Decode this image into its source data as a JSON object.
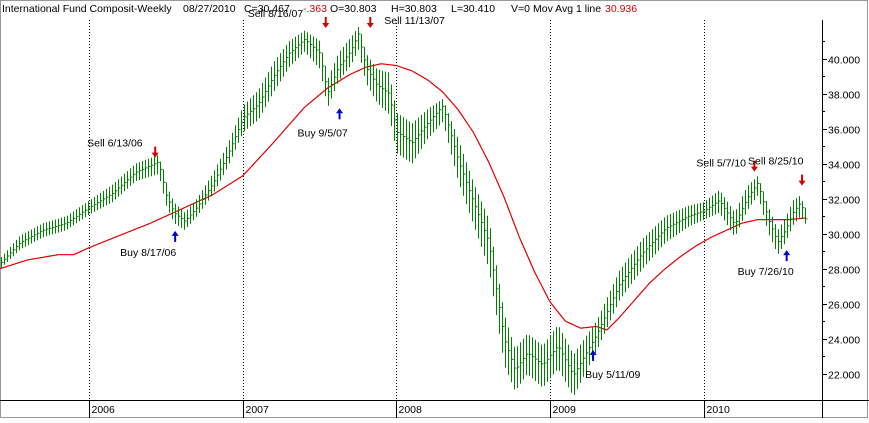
{
  "header": {
    "symbol_title": "International Fund Composit-Weekly",
    "date": "08/27/2010",
    "close": "C=30.467",
    "change": "-.363",
    "open": "O=30.803",
    "high": "H=30.803",
    "low": "L=30.410",
    "volume": "V=0",
    "ma_label": "Mov Avg 1 line",
    "ma_value": "30.936"
  },
  "colors": {
    "price": "#008000",
    "moving_average": "#e00000",
    "sell_arrow": "#d40000",
    "buy_arrow": "#0000cc",
    "change_text": "#d40000",
    "grid": "#000000"
  },
  "chart_data": {
    "type": "line",
    "title": "International Fund Composit-Weekly",
    "xlabel": "",
    "ylabel": "",
    "ylim": [
      20.5,
      42.2
    ],
    "xlim": [
      2005.42,
      2010.77
    ],
    "y_ticks": [
      "22.000",
      "24.000",
      "26.000",
      "28.000",
      "30.000",
      "32.000",
      "34.000",
      "36.000",
      "38.000",
      "40.000"
    ],
    "x_ticks": [
      {
        "label": "2006",
        "x": 2006.0
      },
      {
        "label": "2007",
        "x": 2007.0
      },
      {
        "label": "2008",
        "x": 2008.0
      },
      {
        "label": "2009",
        "x": 2009.0
      },
      {
        "label": "2010",
        "x": 2010.0
      }
    ],
    "grid": "vertical year lines",
    "series": [
      {
        "kind": "price_bars",
        "x": [
          2005.42,
          2005.55,
          2005.7,
          2005.85,
          2006.0,
          2006.15,
          2006.3,
          2006.45,
          2006.5,
          2006.55,
          2006.62,
          2006.7,
          2006.8,
          2006.9,
          2007.0,
          2007.1,
          2007.2,
          2007.3,
          2007.4,
          2007.5,
          2007.55,
          2007.62,
          2007.7,
          2007.75,
          2007.8,
          2007.87,
          2007.95,
          2008.0,
          2008.1,
          2008.2,
          2008.3,
          2008.4,
          2008.5,
          2008.6,
          2008.7,
          2008.77,
          2008.85,
          2008.95,
          2009.05,
          2009.15,
          2009.3,
          2009.45,
          2009.6,
          2009.75,
          2009.9,
          2010.0,
          2010.1,
          2010.2,
          2010.28,
          2010.35,
          2010.42,
          2010.48,
          2010.53,
          2010.58,
          2010.63,
          2010.67
        ],
        "value": [
          28.3,
          29.5,
          30.2,
          30.6,
          31.5,
          32.3,
          33.5,
          34.1,
          32.2,
          31.2,
          30.7,
          31.5,
          32.8,
          34.5,
          36.6,
          37.4,
          39.0,
          40.3,
          41.1,
          40.3,
          38.0,
          39.5,
          40.4,
          41.4,
          39.5,
          38.5,
          38.0,
          35.8,
          35.2,
          36.3,
          37.3,
          34.2,
          31.8,
          29.5,
          24.0,
          22.2,
          23.2,
          22.5,
          23.6,
          21.9,
          24.2,
          27.1,
          28.9,
          30.3,
          31.0,
          31.3,
          31.9,
          30.5,
          32.0,
          32.9,
          30.8,
          29.5,
          30.2,
          31.2,
          31.8,
          30.5
        ],
        "low": [
          28.0,
          29.1,
          29.8,
          30.2,
          31.1,
          31.8,
          33.0,
          33.4,
          31.6,
          30.6,
          30.2,
          31.0,
          32.2,
          33.8,
          35.8,
          36.5,
          38.1,
          39.5,
          40.4,
          39.4,
          37.2,
          38.7,
          39.6,
          40.5,
          38.6,
          37.5,
          36.8,
          34.6,
          34.0,
          35.4,
          36.4,
          33.0,
          30.5,
          28.0,
          22.5,
          21.0,
          22.0,
          21.2,
          22.3,
          20.7,
          23.3,
          26.2,
          28.0,
          29.5,
          30.4,
          30.8,
          31.2,
          29.8,
          31.3,
          32.2,
          30.0,
          28.8,
          29.5,
          30.5,
          31.0,
          30.4
        ],
        "high": [
          28.6,
          29.9,
          30.6,
          31.0,
          31.9,
          32.8,
          34.0,
          34.5,
          32.8,
          31.8,
          31.2,
          32.0,
          33.4,
          35.1,
          37.3,
          38.2,
          39.8,
          41.0,
          41.6,
          41.0,
          38.8,
          40.3,
          41.2,
          41.8,
          40.3,
          39.4,
          39.2,
          36.9,
          36.3,
          37.1,
          37.7,
          35.4,
          32.9,
          30.8,
          25.4,
          23.4,
          24.3,
          23.6,
          24.8,
          23.1,
          25.0,
          27.9,
          29.7,
          31.0,
          31.6,
          31.8,
          32.5,
          31.2,
          32.7,
          33.3,
          31.5,
          30.2,
          30.9,
          31.9,
          32.2,
          30.8
        ]
      },
      {
        "kind": "moving_average",
        "name": "Mov Avg 1 line",
        "x": [
          2005.42,
          2005.6,
          2005.8,
          2005.9,
          2006.0,
          2006.2,
          2006.4,
          2006.6,
          2006.8,
          2007.0,
          2007.2,
          2007.4,
          2007.55,
          2007.7,
          2007.8,
          2007.9,
          2008.0,
          2008.1,
          2008.2,
          2008.3,
          2008.4,
          2008.5,
          2008.6,
          2008.7,
          2008.8,
          2008.9,
          2009.0,
          2009.1,
          2009.2,
          2009.3,
          2009.37,
          2009.45,
          2009.55,
          2009.65,
          2009.75,
          2009.85,
          2009.95,
          2010.05,
          2010.15,
          2010.25,
          2010.35,
          2010.45,
          2010.55,
          2010.67
        ],
        "value": [
          28.0,
          28.5,
          28.8,
          28.8,
          29.2,
          29.9,
          30.6,
          31.4,
          32.2,
          33.3,
          35.2,
          37.2,
          38.3,
          39.1,
          39.5,
          39.7,
          39.6,
          39.3,
          38.8,
          38.1,
          37.1,
          35.8,
          34.1,
          32.1,
          29.8,
          27.8,
          26.1,
          25.0,
          24.6,
          24.7,
          24.5,
          25.2,
          26.2,
          27.2,
          28.0,
          28.7,
          29.3,
          29.8,
          30.2,
          30.6,
          30.8,
          30.8,
          30.8,
          30.9
        ]
      }
    ],
    "annotations": [
      {
        "text": "Sell 6/13/06",
        "signal": "sell",
        "x": 2006.43,
        "y": 34.4
      },
      {
        "text": "Buy 8/17/06",
        "signal": "buy",
        "x": 2006.56,
        "y": 30.1
      },
      {
        "text": "Sell 8/16/07",
        "signal": "sell",
        "x": 2007.54,
        "y": 41.8
      },
      {
        "text": "Buy 9/5/07",
        "signal": "buy",
        "x": 2007.63,
        "y": 37.1
      },
      {
        "text": "Sell 11/13/07",
        "signal": "sell",
        "x": 2007.83,
        "y": 41.8
      },
      {
        "text": "Buy 5/11/09",
        "signal": "buy",
        "x": 2009.28,
        "y": 23.3
      },
      {
        "text": "Sell 5/7/10",
        "signal": "sell",
        "x": 2010.33,
        "y": 33.6
      },
      {
        "text": "Buy 7/26/10",
        "signal": "buy",
        "x": 2010.54,
        "y": 29.0
      },
      {
        "text": "Sell 8/25/10",
        "signal": "sell",
        "x": 2010.64,
        "y": 32.8
      }
    ]
  }
}
